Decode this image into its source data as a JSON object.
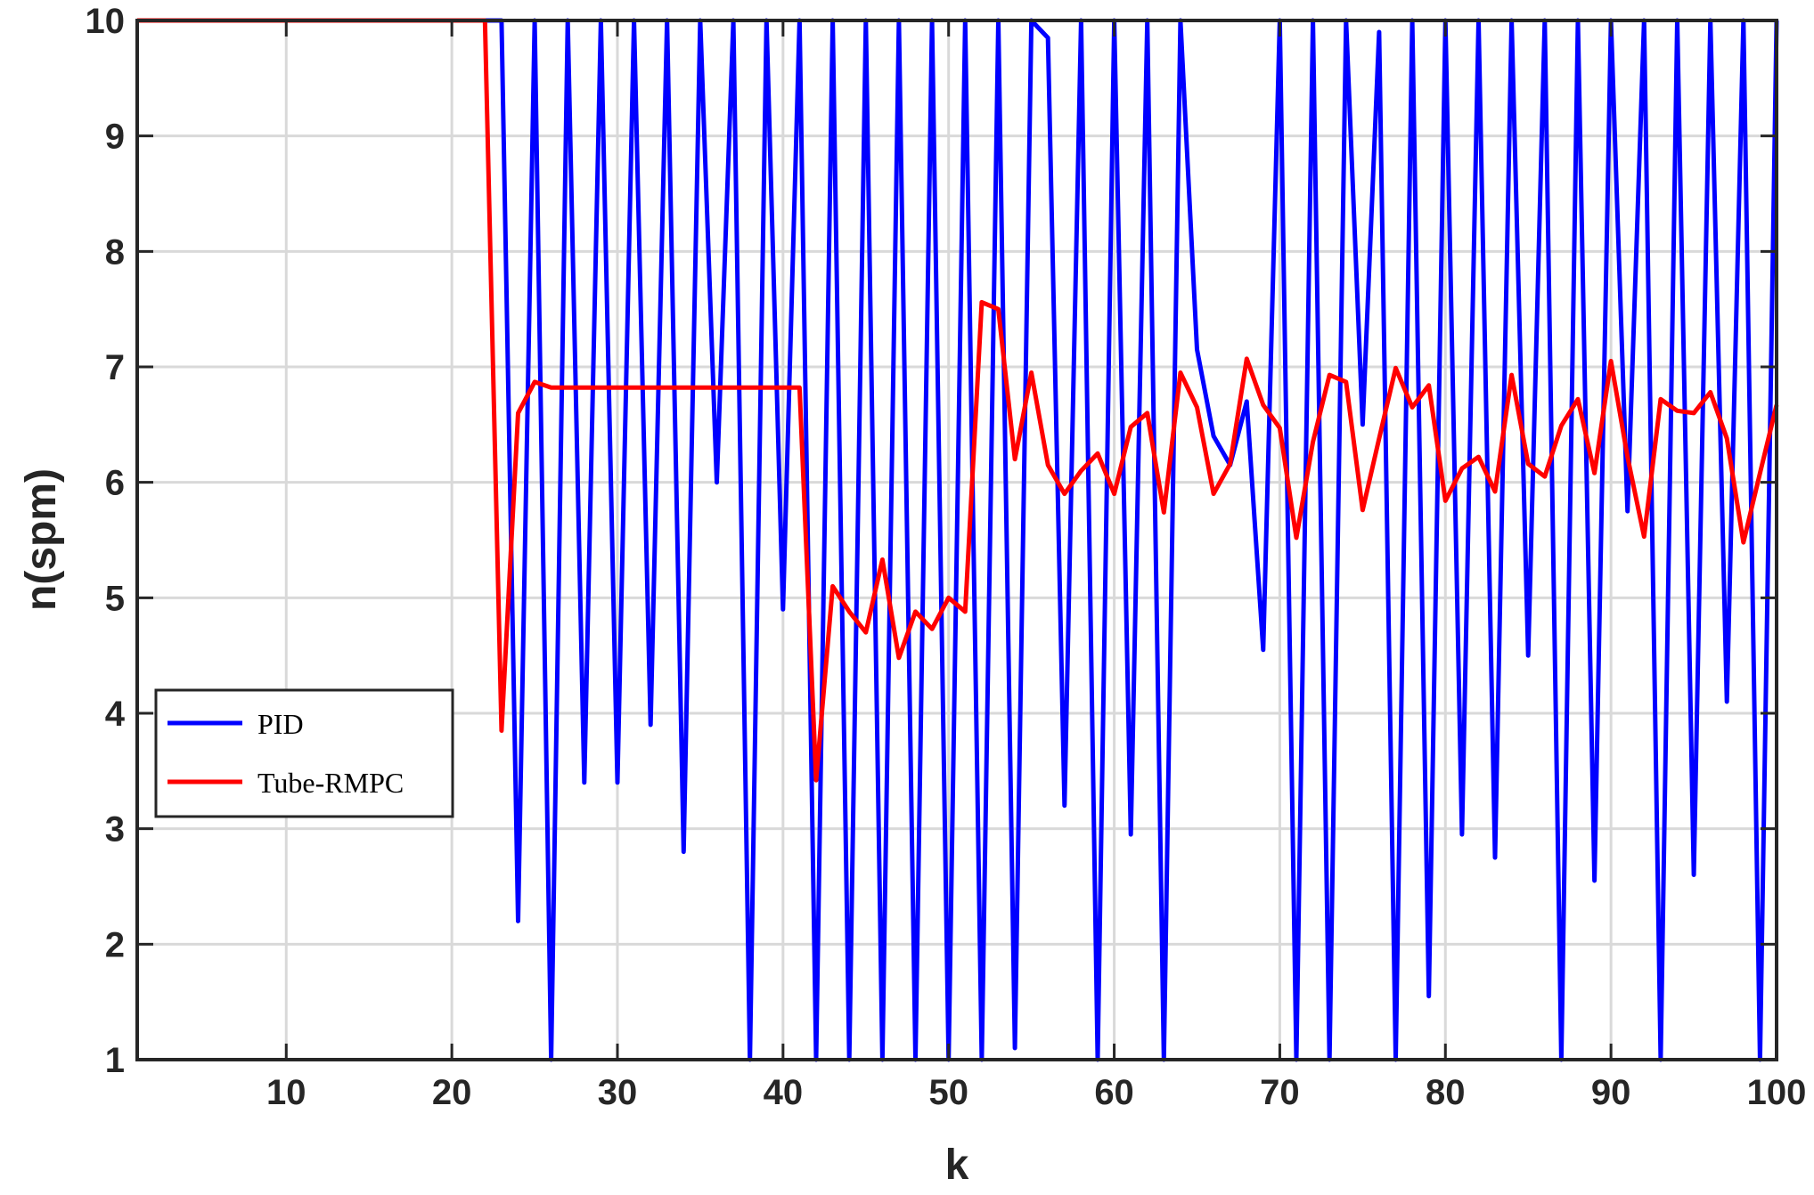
{
  "chart_data": {
    "type": "line",
    "xlabel": "k",
    "ylabel": "n(spm)",
    "xlim": [
      1,
      100
    ],
    "ylim": [
      1,
      10
    ],
    "xticks": [
      10,
      20,
      30,
      40,
      50,
      60,
      70,
      80,
      90,
      100
    ],
    "yticks": [
      1,
      2,
      3,
      4,
      5,
      6,
      7,
      8,
      9,
      10
    ],
    "grid": true,
    "legend_position": "lower-left",
    "series": [
      {
        "name": "PID",
        "color": "#0000ff",
        "x": [
          1,
          2,
          3,
          4,
          5,
          6,
          7,
          8,
          9,
          10,
          11,
          12,
          13,
          14,
          15,
          16,
          17,
          18,
          19,
          20,
          21,
          22,
          23,
          24,
          25,
          26,
          27,
          28,
          29,
          30,
          31,
          32,
          33,
          34,
          35,
          36,
          37,
          38,
          39,
          40,
          41,
          42,
          43,
          44,
          45,
          46,
          47,
          48,
          49,
          50,
          51,
          52,
          53,
          54,
          55,
          56,
          57,
          58,
          59,
          60,
          61,
          62,
          63,
          64,
          65,
          66,
          67,
          68,
          69,
          70,
          71,
          72,
          73,
          74,
          75,
          76,
          77,
          78,
          79,
          80,
          81,
          82,
          83,
          84,
          85,
          86,
          87,
          88,
          89,
          90,
          91,
          92,
          93,
          94,
          95,
          96,
          97,
          98,
          99,
          100
        ],
        "y": [
          10,
          10,
          10,
          10,
          10,
          10,
          10,
          10,
          10,
          10,
          10,
          10,
          10,
          10,
          10,
          10,
          10,
          10,
          10,
          10,
          10,
          10,
          10,
          2.2,
          10,
          1,
          10,
          3.4,
          10,
          3.4,
          10,
          3.9,
          10,
          2.8,
          10,
          6,
          10,
          1,
          10,
          4.9,
          10,
          1,
          10,
          1,
          10,
          1,
          10,
          1,
          10,
          1,
          10,
          1,
          10,
          1.1,
          10,
          9.85,
          3.2,
          10,
          1,
          10,
          2.95,
          10,
          1,
          10,
          7.15,
          6.4,
          6.15,
          6.7,
          4.55,
          10,
          1,
          10,
          1,
          10,
          6.5,
          9.9,
          1,
          10,
          1.55,
          10,
          2.95,
          10,
          2.75,
          10,
          4.5,
          10,
          1,
          10,
          2.55,
          10,
          5.75,
          10,
          1,
          10,
          2.6,
          10,
          4.1,
          10,
          1,
          10
        ]
      },
      {
        "name": "Tube-RMPC",
        "color": "#ff0000",
        "x": [
          1,
          2,
          3,
          4,
          5,
          6,
          7,
          8,
          9,
          10,
          11,
          12,
          13,
          14,
          15,
          16,
          17,
          18,
          19,
          20,
          21,
          22,
          23,
          24,
          25,
          26,
          27,
          28,
          29,
          30,
          31,
          32,
          33,
          34,
          35,
          36,
          37,
          38,
          39,
          40,
          41,
          42,
          43,
          44,
          45,
          46,
          47,
          48,
          49,
          50,
          51,
          52,
          53,
          54,
          55,
          56,
          57,
          58,
          59,
          60,
          61,
          62,
          63,
          64,
          65,
          66,
          67,
          68,
          69,
          70,
          71,
          72,
          73,
          74,
          75,
          76,
          77,
          78,
          79,
          80,
          81,
          82,
          83,
          84,
          85,
          86,
          87,
          88,
          89,
          90,
          91,
          92,
          93,
          94,
          95,
          96,
          97,
          98,
          99,
          100
        ],
        "y": [
          10,
          10,
          10,
          10,
          10,
          10,
          10,
          10,
          10,
          10,
          10,
          10,
          10,
          10,
          10,
          10,
          10,
          10,
          10,
          10,
          10,
          10,
          3.85,
          6.6,
          6.87,
          6.82,
          6.82,
          6.82,
          6.82,
          6.82,
          6.82,
          6.82,
          6.82,
          6.82,
          6.82,
          6.82,
          6.82,
          6.82,
          6.82,
          6.82,
          6.82,
          3.42,
          5.1,
          4.88,
          4.7,
          5.33,
          4.48,
          4.88,
          4.73,
          5.0,
          4.88,
          7.56,
          7.5,
          6.2,
          6.95,
          6.15,
          5.9,
          6.1,
          6.25,
          5.9,
          6.48,
          6.6,
          5.74,
          6.95,
          6.65,
          5.9,
          6.16,
          7.07,
          6.67,
          6.47,
          5.52,
          6.35,
          6.93,
          6.87,
          5.76,
          6.38,
          6.99,
          6.65,
          6.84,
          5.84,
          6.12,
          6.22,
          5.92,
          6.93,
          6.16,
          6.05,
          6.49,
          6.72,
          6.08,
          7.05,
          6.22,
          5.53,
          6.72,
          6.62,
          6.6,
          6.78,
          6.38,
          5.48,
          6.08,
          6.67
        ]
      }
    ]
  }
}
